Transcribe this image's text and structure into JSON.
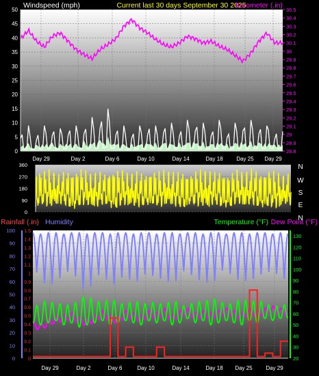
{
  "colors": {
    "background": "#000000",
    "wind": "#ffffff",
    "gust_fill": "#ccffcc",
    "barometer": "#ff00ff",
    "direction": "#ffff00",
    "rainfall": "#ff2020",
    "humidity": "#8080ff",
    "temperature": "#00ff00",
    "dewpoint": "#ff00ff",
    "axis_text": "#ffffff"
  },
  "chart_data": [
    {
      "type": "line",
      "title": "Current last 30 days September 30 2025",
      "series_labels": {
        "left": "Windspeed (mph)",
        "right": "Barometer (.in)"
      },
      "x_ticks": [
        "Day 29",
        "Day 2",
        "Day 6",
        "Day 10",
        "Day 14",
        "Day 18",
        "Day 25",
        "Day 29"
      ],
      "left_ticks": [
        "0",
        "5",
        "10",
        "15",
        "20",
        "25",
        "30",
        "35",
        "40",
        "45",
        "50"
      ],
      "right_ticks": [
        "28.8",
        "28.9",
        "29",
        "29.1",
        "29.2",
        "29.3",
        "29.4",
        "29.5",
        "29.6",
        "29.7",
        "29.8",
        "29.9",
        "30",
        "30.1",
        "30.2",
        "30.3",
        "30.4",
        "30.5"
      ],
      "left_range": [
        0,
        50
      ],
      "right_range": [
        28.8,
        30.5
      ],
      "x_range_days": [
        0,
        33
      ],
      "series": [
        {
          "name": "Windspeed (mph)",
          "axis": "left",
          "x": [
            0,
            0.5,
            1,
            1.5,
            2,
            2.5,
            3,
            3.5,
            4,
            4.5,
            5,
            5.5,
            6,
            6.5,
            7,
            7.5,
            8,
            8.5,
            9,
            9.5,
            10,
            10.5,
            11,
            11.5,
            12,
            12.5,
            13,
            13.5,
            14,
            14.5,
            15,
            15.5,
            16,
            16.5,
            17,
            17.5,
            18,
            18.5,
            19,
            19.5,
            20,
            20.5,
            21,
            21.5,
            22,
            22.5,
            23,
            23.5,
            24,
            24.5,
            25,
            25.5,
            26,
            26.5,
            27,
            27.5,
            28,
            28.5,
            29,
            29.5,
            30,
            30.5,
            31,
            31.5,
            32
          ],
          "values": [
            8,
            4,
            9,
            3,
            7,
            5,
            9,
            6,
            10,
            4,
            8,
            6,
            10,
            5,
            9,
            4,
            11,
            5,
            12,
            6,
            14,
            8,
            15,
            7,
            10,
            5,
            9,
            4,
            8,
            5,
            9,
            6,
            10,
            7,
            9,
            4,
            11,
            6,
            10,
            5,
            9,
            6,
            11,
            7,
            12,
            6,
            10,
            5,
            9,
            6,
            11,
            7,
            8,
            5,
            10,
            6,
            12,
            5,
            11,
            6,
            10,
            7,
            9,
            8,
            7
          ]
        },
        {
          "name": "Barometer (.in)",
          "axis": "right",
          "x": [
            0,
            1,
            2,
            3,
            4,
            5,
            6,
            7,
            8,
            9,
            10,
            11,
            12,
            13,
            14,
            15,
            16,
            17,
            18,
            19,
            20,
            21,
            22,
            23,
            24,
            25,
            26,
            27,
            28,
            29,
            30,
            31,
            32
          ],
          "values": [
            30.15,
            30.25,
            30.12,
            30.05,
            30.18,
            30.22,
            30.12,
            30.02,
            29.96,
            29.91,
            30.02,
            30.08,
            30.15,
            30.3,
            30.38,
            30.28,
            30.22,
            30.14,
            30.08,
            30.05,
            30.1,
            30.18,
            30.15,
            30.1,
            30.12,
            30.06,
            30.02,
            29.95,
            29.88,
            29.98,
            30.12,
            30.22,
            30.1
          ]
        }
      ]
    },
    {
      "type": "line",
      "series_labels": {
        "directions": [
          "N",
          "W",
          "S",
          "E",
          "N"
        ]
      },
      "x_ticks": [],
      "left_ticks": [
        "0",
        "90",
        "180",
        "270",
        "360"
      ],
      "left_range": [
        0,
        360
      ],
      "x_range_days": [
        0,
        33
      ],
      "series": [
        {
          "name": "Wind direction (deg)",
          "axis": "left",
          "x": [
            0,
            1,
            2,
            3,
            4,
            5,
            6,
            7,
            8,
            9,
            10,
            11,
            12,
            13,
            14,
            15,
            16,
            17,
            18,
            19,
            20,
            21,
            22,
            23,
            24,
            25,
            26,
            27,
            28,
            29,
            30,
            31,
            32
          ],
          "low": [
            40,
            50,
            30,
            60,
            40,
            20,
            50,
            40,
            30,
            60,
            20,
            40,
            50,
            30,
            40,
            60,
            30,
            50,
            40,
            20,
            60,
            40,
            30,
            50,
            40,
            30,
            60,
            40,
            50,
            30,
            40,
            20,
            50
          ],
          "high": [
            330,
            320,
            340,
            300,
            320,
            330,
            340,
            310,
            320,
            300,
            340,
            330,
            310,
            320,
            300,
            330,
            320,
            340,
            310,
            320,
            300,
            330,
            340,
            310,
            320,
            300,
            330,
            320,
            340,
            310,
            330,
            320,
            300
          ]
        }
      ]
    },
    {
      "type": "line",
      "series_labels": {
        "rain": "Rainfall (.in)",
        "humidity": "Humidity",
        "temperature": "Temperature (°F)",
        "dewpoint": "Dew Point (°F)"
      },
      "x_ticks": [
        "Day 29",
        "Day 2",
        "Day 6",
        "Day 10",
        "Day 14",
        "Day 18",
        "Day 25",
        "Day 29"
      ],
      "humidity_ticks": [
        "0",
        "10",
        "20",
        "30",
        "40",
        "50",
        "60",
        "70",
        "80",
        "90",
        "100"
      ],
      "rain_ticks": [
        "0",
        "0.1",
        "0.2",
        "0.3",
        "0.4",
        "0.5",
        "0.6",
        "0.7",
        "0.8",
        "0.9",
        "1",
        "1.1",
        "1.2",
        "1.3",
        "1.4",
        "1.5"
      ],
      "temp_ticks": [
        "20",
        "30",
        "40",
        "50",
        "60",
        "70",
        "80",
        "90",
        "100",
        "110",
        "120",
        "130"
      ],
      "humidity_range": [
        0,
        100
      ],
      "rain_range": [
        0,
        1.5
      ],
      "temp_range": [
        20,
        135
      ],
      "x_range_days": [
        0,
        33
      ],
      "series": [
        {
          "name": "Humidity",
          "axis": "humidity",
          "x": [
            0,
            1,
            2,
            3,
            4,
            5,
            6,
            7,
            8,
            9,
            10,
            11,
            12,
            13,
            14,
            15,
            16,
            17,
            18,
            19,
            20,
            21,
            22,
            23,
            24,
            25,
            26,
            27,
            28,
            29,
            30,
            31,
            32
          ],
          "high": [
            98,
            97,
            98,
            98,
            97,
            98,
            98,
            97,
            98,
            98,
            97,
            98,
            98,
            97,
            98,
            98,
            97,
            98,
            98,
            97,
            98,
            98,
            97,
            98,
            98,
            97,
            98,
            98,
            97,
            98,
            98,
            97,
            98
          ],
          "low": [
            72,
            62,
            55,
            60,
            65,
            70,
            58,
            50,
            62,
            68,
            55,
            60,
            66,
            57,
            62,
            69,
            60,
            64,
            55,
            66,
            70,
            60,
            62,
            56,
            65,
            72,
            60,
            63,
            58,
            66,
            65,
            70,
            62
          ]
        },
        {
          "name": "Temperature (°F)",
          "axis": "temp",
          "x": [
            0,
            1,
            2,
            3,
            4,
            5,
            6,
            7,
            8,
            9,
            10,
            11,
            12,
            13,
            14,
            15,
            16,
            17,
            18,
            19,
            20,
            21,
            22,
            23,
            24,
            25,
            26,
            27,
            28,
            29,
            30,
            31,
            32
          ],
          "high": [
            65,
            70,
            72,
            68,
            70,
            66,
            74,
            76,
            72,
            70,
            74,
            70,
            68,
            72,
            70,
            68,
            72,
            66,
            74,
            68,
            66,
            72,
            70,
            74,
            72,
            68,
            70,
            74,
            70,
            72,
            70,
            66,
            68
          ],
          "low": [
            52,
            50,
            52,
            54,
            50,
            52,
            48,
            50,
            52,
            54,
            50,
            52,
            54,
            52,
            50,
            54,
            52,
            54,
            50,
            52,
            56,
            52,
            54,
            50,
            52,
            54,
            52,
            50,
            54,
            52,
            56,
            54,
            56
          ]
        },
        {
          "name": "Dew Point (°F)",
          "axis": "temp",
          "x": [
            0,
            1,
            2,
            3,
            4,
            5,
            6,
            7,
            8,
            9,
            10,
            11,
            12,
            13,
            14,
            15,
            16,
            17,
            18,
            19,
            20,
            21,
            22,
            23,
            24,
            25,
            26,
            27,
            28,
            29,
            30,
            31,
            32
          ],
          "values": [
            50,
            48,
            52,
            55,
            56,
            58,
            54,
            52,
            56,
            60,
            56,
            54,
            60,
            58,
            56,
            60,
            58,
            62,
            56,
            60,
            62,
            58,
            60,
            58,
            60,
            62,
            60,
            58,
            62,
            60,
            62,
            64,
            62
          ]
        },
        {
          "name": "Rainfall (.in)",
          "axis": "rain",
          "x": [
            0,
            1,
            2,
            3,
            4,
            5,
            6,
            7,
            8,
            9,
            10,
            11,
            12,
            13,
            14,
            15,
            16,
            17,
            18,
            19,
            20,
            21,
            22,
            23,
            24,
            25,
            26,
            27,
            28,
            29,
            30,
            31,
            32
          ],
          "values": [
            0.02,
            0.02,
            0.02,
            0.02,
            0.02,
            0.02,
            0.02,
            0.02,
            0.02,
            0.02,
            0.47,
            0.02,
            0.13,
            0.02,
            0.02,
            0.02,
            0.13,
            0.02,
            0.02,
            0.02,
            0.02,
            0.02,
            0.02,
            0.02,
            0.02,
            0.02,
            0.02,
            0.02,
            0.8,
            0.02,
            0.06,
            0.02,
            0.2
          ]
        }
      ]
    }
  ]
}
